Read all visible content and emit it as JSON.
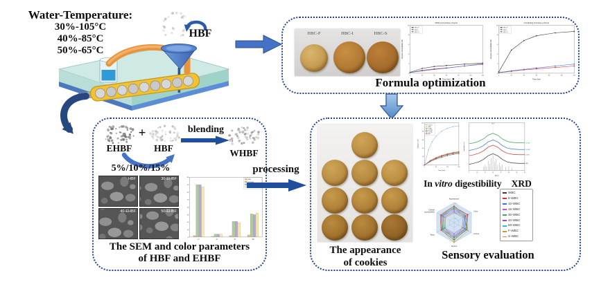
{
  "water": {
    "title": "Water-Temperature:",
    "lines": [
      "30%-105°C",
      "40%-85°C",
      "50%-65°C"
    ]
  },
  "labels": {
    "hbf_feed": "HBF",
    "ehbf": "EHBF",
    "hbf": "HBF",
    "plus": "+",
    "blending": "blending",
    "whbf": "WHBF",
    "ratios": "5%/10%/15%",
    "processing": "processing"
  },
  "formula": {
    "cookies": [
      "HBC-F",
      "HBC-I",
      "HBC-S"
    ],
    "caption": "Formula optimization"
  },
  "sem": {
    "tiles": [
      "HBF",
      "30-EHBF",
      "40-EHBF",
      "50-EHBF"
    ],
    "caption1": "The SEM and color parameters",
    "caption2": "of HBF and EHBF"
  },
  "cookies": {
    "caption1": "The appearance",
    "caption2": "of cookies"
  },
  "analysis": {
    "invitro_pre": "In",
    "invitro_it": "vitro",
    "invitro_post": "digestibility",
    "xrd": "XRD",
    "sensory": "Sensory evaluation"
  },
  "colors": {
    "box_border": "#1c3f94",
    "arrow_blue": "#4472c4",
    "arrow_navy": "#1f4e9c"
  },
  "chart_data": [
    {
      "id": "glucose-without",
      "type": "line",
      "title": "Without invertase enzyme",
      "xlabel": "Time (min)",
      "ylabel": "Glucose concentration (%)",
      "xlim": [
        0,
        120
      ],
      "ylim": [
        0,
        10
      ],
      "xticks": [
        0,
        20,
        40,
        60,
        80,
        100,
        120
      ],
      "yticks": [
        0,
        2,
        4,
        6,
        8,
        10
      ],
      "legend_position": "top-left",
      "series": [
        {
          "name": "HBC-F",
          "color": "#3a3a3a",
          "points": [
            [
              0,
              0.2
            ],
            [
              20,
              1.0
            ],
            [
              40,
              1.4
            ],
            [
              60,
              1.6
            ],
            [
              90,
              1.9
            ],
            [
              120,
              2.1
            ]
          ]
        },
        {
          "name": "HBC-I",
          "color": "#d93030",
          "points": [
            [
              0,
              0.15
            ],
            [
              20,
              0.5
            ],
            [
              40,
              0.8
            ],
            [
              60,
              1.05
            ],
            [
              90,
              1.5
            ],
            [
              120,
              2.0
            ]
          ]
        },
        {
          "name": "HBC-S",
          "color": "#3a6fd8",
          "points": [
            [
              0,
              0.15
            ],
            [
              20,
              0.6
            ],
            [
              40,
              0.9
            ],
            [
              60,
              1.1
            ],
            [
              90,
              1.5
            ],
            [
              120,
              1.85
            ]
          ]
        }
      ]
    },
    {
      "id": "glucose-with",
      "type": "line",
      "title": "Containing invertase enzyme",
      "xlabel": "Time (min)",
      "ylabel": "Glucose concentration (%)",
      "xlim": [
        0,
        120
      ],
      "ylim": [
        0,
        10
      ],
      "xticks": [
        0,
        20,
        40,
        60,
        80,
        100,
        120
      ],
      "yticks": [
        0,
        2,
        4,
        6,
        8,
        10
      ],
      "legend_position": "top-left",
      "series": [
        {
          "name": "HBC-F",
          "color": "#3a3a3a",
          "points": [
            [
              0,
              0.3
            ],
            [
              20,
              4.8
            ],
            [
              40,
              6.8
            ],
            [
              60,
              7.8
            ],
            [
              90,
              8.4
            ],
            [
              120,
              8.7
            ]
          ]
        },
        {
          "name": "HBC-I",
          "color": "#d93030",
          "points": [
            [
              0,
              0.1
            ],
            [
              20,
              0.4
            ],
            [
              40,
              0.7
            ],
            [
              60,
              0.9
            ],
            [
              90,
              1.2
            ],
            [
              120,
              1.5
            ]
          ]
        },
        {
          "name": "HBC-S",
          "color": "#3a6fd8",
          "points": [
            [
              0,
              0.15
            ],
            [
              20,
              0.5
            ],
            [
              40,
              0.8
            ],
            [
              60,
              1.1
            ],
            [
              90,
              1.5
            ],
            [
              120,
              1.9
            ]
          ]
        }
      ]
    },
    {
      "id": "color-parameters",
      "type": "bar",
      "categories": [
        "L*",
        "a*",
        "b*",
        "WI"
      ],
      "ylim": [
        0,
        80
      ],
      "yticks": [
        0,
        10,
        20,
        30,
        40,
        50,
        60,
        70,
        80
      ],
      "legend_position": "top-right",
      "series": [
        {
          "name": "HBF",
          "color": "#f4b183",
          "values": [
            2,
            1,
            2,
            3
          ]
        },
        {
          "name": "30-EHBF",
          "color": "#a9d18e",
          "values": [
            70,
            4,
            21,
            31
          ]
        },
        {
          "name": "40-EHBF",
          "color": "#b4a7d6",
          "values": [
            70,
            4,
            21,
            30
          ]
        },
        {
          "name": "50-EHBF",
          "color": "#ffe699",
          "values": [
            67,
            4,
            19,
            32
          ]
        }
      ]
    },
    {
      "id": "in-vitro-digestibility",
      "type": "line",
      "title": "",
      "xlabel": "Time (min)",
      "ylabel": "Hydrolysis (%)",
      "xlim": [
        0,
        180
      ],
      "ylim": [
        0,
        100
      ],
      "xticks": [
        0,
        60,
        120,
        180
      ],
      "yticks": [
        0,
        20,
        40,
        60,
        80,
        100
      ],
      "legend_position": "top-left",
      "series": [
        {
          "name": "Control",
          "color": "#7eb6e8",
          "points": [
            [
              0,
              0
            ],
            [
              20,
              35
            ],
            [
              40,
              55
            ],
            [
              60,
              68
            ],
            [
              90,
              80
            ],
            [
              120,
              87
            ],
            [
              150,
              91
            ],
            [
              180,
              93
            ]
          ]
        },
        {
          "name": "WBC",
          "color": "#f0a050",
          "points": [
            [
              0,
              0
            ],
            [
              30,
              11
            ],
            [
              60,
              18
            ],
            [
              90,
              23
            ],
            [
              120,
              27
            ],
            [
              150,
              30
            ],
            [
              180,
              32
            ]
          ]
        },
        {
          "name": "5-WBC",
          "color": "#6aa84f",
          "points": [
            [
              0,
              0
            ],
            [
              30,
              10
            ],
            [
              60,
              16
            ],
            [
              90,
              21
            ],
            [
              120,
              25
            ],
            [
              150,
              28
            ],
            [
              180,
              30
            ]
          ]
        },
        {
          "name": "10-WBC",
          "color": "#cc4125",
          "points": [
            [
              0,
              0
            ],
            [
              30,
              9
            ],
            [
              60,
              15
            ],
            [
              90,
              20
            ],
            [
              120,
              24
            ],
            [
              150,
              27
            ],
            [
              180,
              29
            ]
          ]
        },
        {
          "name": "15-WBC",
          "color": "#45818e",
          "points": [
            [
              0,
              0
            ],
            [
              30,
              8
            ],
            [
              60,
              14
            ],
            [
              90,
              18
            ],
            [
              120,
              22
            ],
            [
              150,
              25
            ],
            [
              180,
              27
            ]
          ]
        },
        {
          "name": "HBC",
          "color": "#a64d79",
          "points": [
            [
              0,
              0
            ],
            [
              30,
              10
            ],
            [
              60,
              17
            ],
            [
              90,
              22
            ],
            [
              120,
              26
            ],
            [
              150,
              29
            ],
            [
              180,
              31
            ]
          ]
        }
      ]
    },
    {
      "id": "xrd",
      "type": "xrd",
      "xlabel": "2θ (°)",
      "ylabel": "Intensity (a.u.)",
      "xlim": [
        5,
        40
      ],
      "xticks": [
        5,
        10,
        15,
        20,
        25,
        30,
        35,
        40
      ],
      "annotation": "19.9°",
      "series": [
        {
          "name": "15-WBC",
          "color": "#3aa655",
          "points": [
            [
              5,
              56
            ],
            [
              8,
              58
            ],
            [
              11,
              61
            ],
            [
              14,
              66
            ],
            [
              17,
              74
            ],
            [
              20,
              78
            ],
            [
              23,
              74
            ],
            [
              26,
              66
            ],
            [
              29,
              61
            ],
            [
              32,
              59
            ],
            [
              36,
              58
            ],
            [
              40,
              58
            ]
          ]
        },
        {
          "name": "10-WBC",
          "color": "#3a6fd8",
          "points": [
            [
              5,
              42
            ],
            [
              8,
              44
            ],
            [
              11,
              47
            ],
            [
              14,
              52
            ],
            [
              17,
              60
            ],
            [
              20,
              64
            ],
            [
              23,
              60
            ],
            [
              26,
              52
            ],
            [
              29,
              47
            ],
            [
              32,
              45
            ],
            [
              36,
              44
            ],
            [
              40,
              44
            ]
          ]
        },
        {
          "name": "5-WBC",
          "color": "#d93030",
          "points": [
            [
              5,
              31
            ],
            [
              8,
              33
            ],
            [
              11,
              36
            ],
            [
              14,
              41
            ],
            [
              17,
              49
            ],
            [
              20,
              53
            ],
            [
              23,
              49
            ],
            [
              26,
              41
            ],
            [
              29,
              36
            ],
            [
              32,
              34
            ],
            [
              36,
              33
            ],
            [
              40,
              33
            ]
          ]
        },
        {
          "name": "WBC",
          "color": "#3a3a3a",
          "points": [
            [
              5,
              13
            ],
            [
              8,
              15
            ],
            [
              11,
              18
            ],
            [
              14,
              23
            ],
            [
              17,
              31
            ],
            [
              20,
              35
            ],
            [
              23,
              31
            ],
            [
              26,
              23
            ],
            [
              29,
              18
            ],
            [
              32,
              16
            ],
            [
              36,
              15
            ],
            [
              40,
              15
            ]
          ]
        }
      ],
      "sticks": {
        "color": "#8a8a8a",
        "points": [
          [
            14,
            8
          ],
          [
            15,
            12
          ],
          [
            16,
            9
          ],
          [
            17,
            20
          ],
          [
            18,
            14
          ],
          [
            19,
            26
          ],
          [
            20,
            32
          ],
          [
            21,
            18
          ],
          [
            22,
            24
          ],
          [
            23,
            12
          ],
          [
            24,
            16
          ],
          [
            25,
            9
          ],
          [
            26,
            12
          ],
          [
            28,
            7
          ],
          [
            30,
            9
          ],
          [
            32,
            5
          ]
        ]
      }
    },
    {
      "id": "sensory",
      "type": "radar",
      "axes": [
        "Appearance",
        "Color",
        "Aroma",
        "Texture",
        "Taste",
        "Overall acceptability"
      ],
      "rings": 4,
      "max": 10,
      "legend_position": "right",
      "series": [
        {
          "name": "WBC",
          "color": "#3a3a3a",
          "values": [
            8.0,
            7.8,
            7.2,
            8.5,
            7.5,
            7.8
          ]
        },
        {
          "name": "5-WBC",
          "color": "#d93030",
          "values": [
            7.2,
            8.0,
            6.6,
            7.4,
            7.0,
            7.4
          ]
        },
        {
          "name": "10-WBC",
          "color": "#3a6fd8",
          "values": [
            6.6,
            7.0,
            6.2,
            6.8,
            6.6,
            6.8
          ]
        },
        {
          "name": "15-WBC",
          "color": "#cf4ac4",
          "values": [
            6.0,
            6.4,
            5.8,
            6.2,
            6.0,
            6.2
          ]
        },
        {
          "name": "30-WBC",
          "color": "#3aa655",
          "values": [
            7.4,
            6.6,
            7.0,
            7.8,
            6.4,
            7.0
          ]
        },
        {
          "name": "40-WBC",
          "color": "#8a4fd0",
          "values": [
            5.4,
            5.8,
            5.2,
            5.6,
            5.5,
            5.6
          ]
        },
        {
          "name": "50-WBC",
          "color": "#2fb8c5",
          "values": [
            6.8,
            6.0,
            6.4,
            7.0,
            5.8,
            6.4
          ]
        },
        {
          "name": "F-WBC",
          "color": "#a8a832",
          "values": [
            4.8,
            5.2,
            4.6,
            9.5,
            5.0,
            5.0
          ]
        },
        {
          "name": "S-WBC",
          "color": "#f08030",
          "values": [
            8.5,
            7.0,
            8.0,
            10.0,
            7.2,
            7.8
          ]
        }
      ]
    }
  ]
}
